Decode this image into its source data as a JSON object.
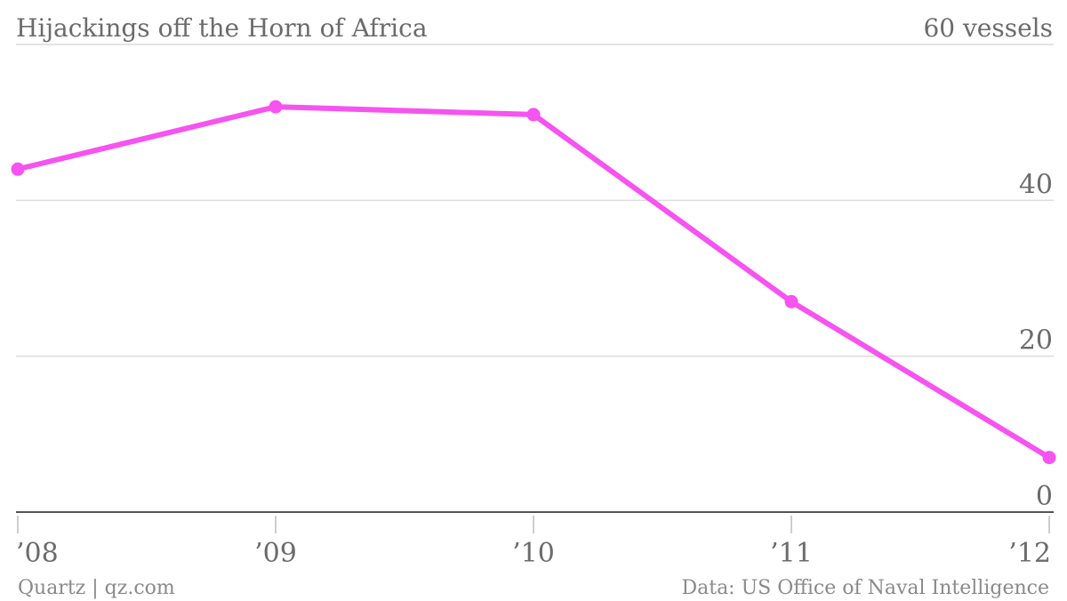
{
  "chart_data": {
    "type": "line",
    "title": "Hijackings off the Horn of Africa",
    "categories": [
      "’08",
      "’09",
      "’10",
      "’11",
      "’12"
    ],
    "series": [
      {
        "values": [
          44,
          52,
          51,
          27,
          7
        ]
      }
    ],
    "ylim": [
      0,
      60
    ],
    "yticks": [
      0,
      20,
      40
    ],
    "ytick_labels": [
      "0",
      "20",
      "40"
    ],
    "ymax_label": "60 vessels",
    "grid": true,
    "line_color": "#f653f0",
    "source": "Data: US Office of Naval Intelligence",
    "credit": "Quartz | qz.com"
  }
}
